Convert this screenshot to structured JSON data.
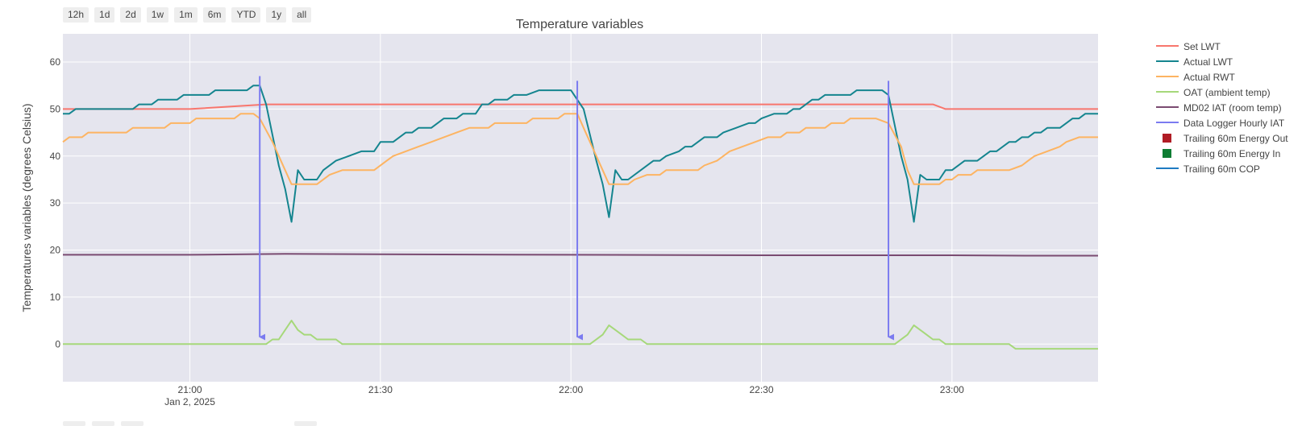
{
  "range_selector": [
    "12h",
    "1d",
    "2d",
    "1w",
    "1m",
    "6m",
    "YTD",
    "1y",
    "all"
  ],
  "chart_data": {
    "type": "line",
    "title": "Temperature variables",
    "ylabel": "Temperatures variables (degrees Celsius)",
    "xlabel": "",
    "ylim": [
      -8,
      66
    ],
    "yticks": [
      0,
      10,
      20,
      30,
      40,
      50,
      60
    ],
    "xlim": [
      "2025-01-02 20:40",
      "2025-01-02 23:23"
    ],
    "xticks": [
      {
        "t": "2025-01-02 21:00",
        "label": "21:00",
        "sublabel": "Jan 2, 2025"
      },
      {
        "t": "2025-01-02 21:30",
        "label": "21:30",
        "sublabel": ""
      },
      {
        "t": "2025-01-02 22:00",
        "label": "22:00",
        "sublabel": ""
      },
      {
        "t": "2025-01-02 22:30",
        "label": "22:30",
        "sublabel": ""
      },
      {
        "t": "2025-01-02 23:00",
        "label": "23:00",
        "sublabel": ""
      }
    ],
    "grid": true,
    "legend_position": "right",
    "plot_bgcolor": "#e5e5ee",
    "series": [
      {
        "name": "Set LWT",
        "type": "line",
        "color": "#f8766d",
        "points": [
          [
            "20:40",
            50
          ],
          [
            "21:00",
            50
          ],
          [
            "21:12",
            51
          ],
          [
            "22:00",
            51
          ],
          [
            "22:30",
            51
          ],
          [
            "22:57",
            51
          ],
          [
            "22:59",
            50
          ],
          [
            "23:23",
            50
          ]
        ]
      },
      {
        "name": "Actual LWT",
        "type": "line",
        "color": "#15858f",
        "points": [
          [
            "20:40",
            49
          ],
          [
            "20:41",
            49
          ],
          [
            "20:42",
            50
          ],
          [
            "20:51",
            50
          ],
          [
            "20:52",
            51
          ],
          [
            "20:54",
            51
          ],
          [
            "20:55",
            52
          ],
          [
            "20:58",
            52
          ],
          [
            "20:59",
            53
          ],
          [
            "21:03",
            53
          ],
          [
            "21:04",
            54
          ],
          [
            "21:09",
            54
          ],
          [
            "21:10",
            55
          ],
          [
            "21:11",
            55
          ],
          [
            "21:12",
            51
          ],
          [
            "21:14",
            38
          ],
          [
            "21:15",
            33
          ],
          [
            "21:16",
            26
          ],
          [
            "21:17",
            37
          ],
          [
            "21:18",
            35
          ],
          [
            "21:20",
            35
          ],
          [
            "21:21",
            37
          ],
          [
            "21:23",
            39
          ],
          [
            "21:25",
            40
          ],
          [
            "21:27",
            41
          ],
          [
            "21:29",
            41
          ],
          [
            "21:30",
            43
          ],
          [
            "21:32",
            43
          ],
          [
            "21:34",
            45
          ],
          [
            "21:35",
            45
          ],
          [
            "21:36",
            46
          ],
          [
            "21:38",
            46
          ],
          [
            "21:40",
            48
          ],
          [
            "21:42",
            48
          ],
          [
            "21:43",
            49
          ],
          [
            "21:45",
            49
          ],
          [
            "21:46",
            51
          ],
          [
            "21:47",
            51
          ],
          [
            "21:48",
            52
          ],
          [
            "21:50",
            52
          ],
          [
            "21:51",
            53
          ],
          [
            "21:53",
            53
          ],
          [
            "21:55",
            54
          ],
          [
            "22:00",
            54
          ],
          [
            "22:02",
            50
          ],
          [
            "22:04",
            39
          ],
          [
            "22:05",
            34
          ],
          [
            "22:06",
            27
          ],
          [
            "22:07",
            37
          ],
          [
            "22:08",
            35
          ],
          [
            "22:09",
            35
          ],
          [
            "22:11",
            37
          ],
          [
            "22:13",
            39
          ],
          [
            "22:14",
            39
          ],
          [
            "22:15",
            40
          ],
          [
            "22:17",
            41
          ],
          [
            "22:18",
            42
          ],
          [
            "22:19",
            42
          ],
          [
            "22:21",
            44
          ],
          [
            "22:23",
            44
          ],
          [
            "22:24",
            45
          ],
          [
            "22:26",
            46
          ],
          [
            "22:28",
            47
          ],
          [
            "22:29",
            47
          ],
          [
            "22:30",
            48
          ],
          [
            "22:32",
            49
          ],
          [
            "22:34",
            49
          ],
          [
            "22:35",
            50
          ],
          [
            "22:36",
            50
          ],
          [
            "22:38",
            52
          ],
          [
            "22:39",
            52
          ],
          [
            "22:40",
            53
          ],
          [
            "22:44",
            53
          ],
          [
            "22:45",
            54
          ],
          [
            "22:49",
            54
          ],
          [
            "22:50",
            53
          ],
          [
            "22:52",
            40
          ],
          [
            "22:53",
            35
          ],
          [
            "22:54",
            26
          ],
          [
            "22:55",
            36
          ],
          [
            "22:56",
            35
          ],
          [
            "22:58",
            35
          ],
          [
            "22:59",
            37
          ],
          [
            "23:00",
            37
          ],
          [
            "23:02",
            39
          ],
          [
            "23:04",
            39
          ],
          [
            "23:06",
            41
          ],
          [
            "23:07",
            41
          ],
          [
            "23:09",
            43
          ],
          [
            "23:10",
            43
          ],
          [
            "23:11",
            44
          ],
          [
            "23:12",
            44
          ],
          [
            "23:13",
            45
          ],
          [
            "23:14",
            45
          ],
          [
            "23:15",
            46
          ],
          [
            "23:17",
            46
          ],
          [
            "23:19",
            48
          ],
          [
            "23:20",
            48
          ],
          [
            "23:21",
            49
          ],
          [
            "23:23",
            49
          ]
        ]
      },
      {
        "name": "Actual RWT",
        "type": "line",
        "color": "#fdb462",
        "points": [
          [
            "20:40",
            43
          ],
          [
            "20:41",
            44
          ],
          [
            "20:43",
            44
          ],
          [
            "20:44",
            45
          ],
          [
            "20:50",
            45
          ],
          [
            "20:51",
            46
          ],
          [
            "20:56",
            46
          ],
          [
            "20:57",
            47
          ],
          [
            "21:00",
            47
          ],
          [
            "21:01",
            48
          ],
          [
            "21:07",
            48
          ],
          [
            "21:08",
            49
          ],
          [
            "21:10",
            49
          ],
          [
            "21:11",
            48
          ],
          [
            "21:13",
            43
          ],
          [
            "21:15",
            37
          ],
          [
            "21:16",
            34
          ],
          [
            "21:20",
            34
          ],
          [
            "21:22",
            36
          ],
          [
            "21:24",
            37
          ],
          [
            "21:29",
            37
          ],
          [
            "21:31",
            39
          ],
          [
            "21:32",
            40
          ],
          [
            "21:34",
            41
          ],
          [
            "21:36",
            42
          ],
          [
            "21:38",
            43
          ],
          [
            "21:40",
            44
          ],
          [
            "21:42",
            45
          ],
          [
            "21:44",
            46
          ],
          [
            "21:47",
            46
          ],
          [
            "21:48",
            47
          ],
          [
            "21:53",
            47
          ],
          [
            "21:54",
            48
          ],
          [
            "21:58",
            48
          ],
          [
            "21:59",
            49
          ],
          [
            "22:01",
            49
          ],
          [
            "22:02",
            46
          ],
          [
            "22:04",
            40
          ],
          [
            "22:05",
            37
          ],
          [
            "22:06",
            34
          ],
          [
            "22:09",
            34
          ],
          [
            "22:10",
            35
          ],
          [
            "22:12",
            36
          ],
          [
            "22:14",
            36
          ],
          [
            "22:15",
            37
          ],
          [
            "22:20",
            37
          ],
          [
            "22:21",
            38
          ],
          [
            "22:23",
            39
          ],
          [
            "22:25",
            41
          ],
          [
            "22:27",
            42
          ],
          [
            "22:29",
            43
          ],
          [
            "22:31",
            44
          ],
          [
            "22:33",
            44
          ],
          [
            "22:34",
            45
          ],
          [
            "22:36",
            45
          ],
          [
            "22:37",
            46
          ],
          [
            "22:40",
            46
          ],
          [
            "22:41",
            47
          ],
          [
            "22:43",
            47
          ],
          [
            "22:44",
            48
          ],
          [
            "22:47",
            48
          ],
          [
            "22:48",
            48
          ],
          [
            "22:50",
            47
          ],
          [
            "22:52",
            42
          ],
          [
            "22:53",
            37
          ],
          [
            "22:54",
            34
          ],
          [
            "22:58",
            34
          ],
          [
            "22:59",
            35
          ],
          [
            "23:00",
            35
          ],
          [
            "23:01",
            36
          ],
          [
            "23:03",
            36
          ],
          [
            "23:04",
            37
          ],
          [
            "23:09",
            37
          ],
          [
            "23:11",
            38
          ],
          [
            "23:12",
            39
          ],
          [
            "23:13",
            40
          ],
          [
            "23:15",
            41
          ],
          [
            "23:17",
            42
          ],
          [
            "23:18",
            43
          ],
          [
            "23:20",
            44
          ],
          [
            "23:23",
            44
          ]
        ]
      },
      {
        "name": "OAT (ambient temp)",
        "type": "line",
        "color": "#a6d87a",
        "points": [
          [
            "20:40",
            0
          ],
          [
            "21:12",
            0
          ],
          [
            "21:13",
            1
          ],
          [
            "21:14",
            1
          ],
          [
            "21:16",
            5
          ],
          [
            "21:17",
            3
          ],
          [
            "21:18",
            2
          ],
          [
            "21:19",
            2
          ],
          [
            "21:20",
            1
          ],
          [
            "21:23",
            1
          ],
          [
            "21:24",
            0
          ],
          [
            "22:03",
            0
          ],
          [
            "22:05",
            2
          ],
          [
            "22:06",
            4
          ],
          [
            "22:08",
            2
          ],
          [
            "22:09",
            1
          ],
          [
            "22:11",
            1
          ],
          [
            "22:12",
            0
          ],
          [
            "22:51",
            0
          ],
          [
            "22:53",
            2
          ],
          [
            "22:54",
            4
          ],
          [
            "22:56",
            2
          ],
          [
            "22:57",
            1
          ],
          [
            "22:58",
            1
          ],
          [
            "22:59",
            0
          ],
          [
            "23:09",
            0
          ],
          [
            "23:10",
            -1
          ],
          [
            "23:23",
            -1
          ]
        ]
      },
      {
        "name": "MD02 IAT (room temp)",
        "type": "line",
        "color": "#7a4b71",
        "points": [
          [
            "20:40",
            19
          ],
          [
            "21:00",
            19
          ],
          [
            "21:15",
            19.2
          ],
          [
            "21:30",
            19.1
          ],
          [
            "22:00",
            19
          ],
          [
            "22:30",
            18.9
          ],
          [
            "23:00",
            18.9
          ],
          [
            "23:12",
            18.8
          ],
          [
            "23:23",
            18.8
          ]
        ]
      },
      {
        "name": "Data Logger Hourly IAT",
        "type": "arrows",
        "color": "#7b7bf0",
        "arrows": [
          {
            "t": "21:11",
            "from": 57,
            "to": 1.5
          },
          {
            "t": "22:01",
            "from": 56,
            "to": 1.5
          },
          {
            "t": "22:50",
            "from": 56,
            "to": 1.5
          }
        ]
      },
      {
        "name": "Trailing 60m Energy Out",
        "type": "bar",
        "color": "#b01c25",
        "points": []
      },
      {
        "name": "Trailing 60m Energy In",
        "type": "bar",
        "color": "#0e7d33",
        "points": []
      },
      {
        "name": "Trailing 60m COP",
        "type": "line",
        "color": "#1f7bc2",
        "points": []
      }
    ]
  }
}
